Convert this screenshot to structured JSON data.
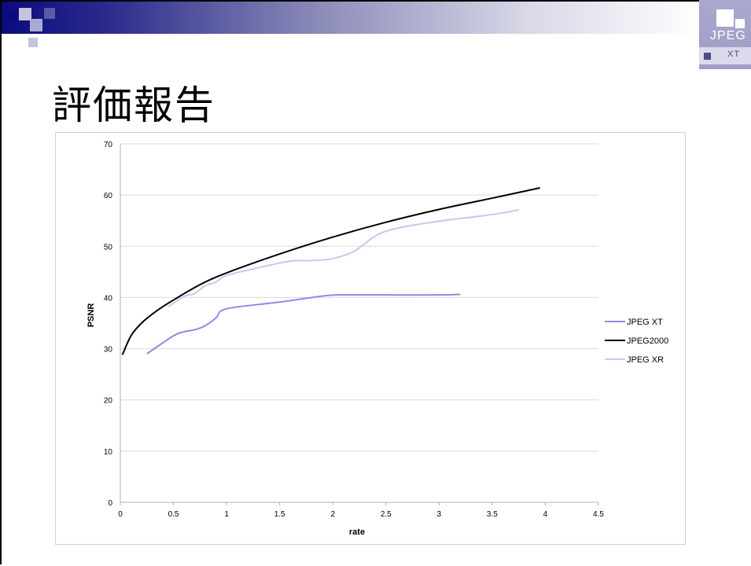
{
  "slide": {
    "title": "評価報告",
    "logo": {
      "main_text": "JPEG",
      "sub_text": "XT"
    },
    "colors": {
      "header_dark": "#0a0a80",
      "header_light": "#ffffff",
      "logo_bg": "#a9a9cf"
    }
  },
  "chart_data": {
    "type": "line",
    "title": "",
    "xlabel": "rate",
    "ylabel": "PSNR",
    "xlim": [
      0,
      4.5
    ],
    "ylim": [
      0,
      70
    ],
    "x_ticks": [
      "0",
      "0.5",
      "1",
      "1.5",
      "2",
      "2.5",
      "3",
      "3.5",
      "4",
      "4.5"
    ],
    "y_ticks": [
      "0",
      "10",
      "20",
      "30",
      "40",
      "50",
      "60",
      "70"
    ],
    "grid": "horizontal",
    "legend_position": "right",
    "series": [
      {
        "name": "JPEG XT",
        "color": "#8b8be8",
        "points": [
          [
            0.25,
            29.0
          ],
          [
            0.5,
            32.5
          ],
          [
            0.6,
            33.3
          ],
          [
            0.7,
            33.7
          ],
          [
            0.8,
            34.5
          ],
          [
            0.9,
            36.0
          ],
          [
            1.0,
            37.8
          ],
          [
            1.5,
            39.1
          ],
          [
            1.95,
            40.4
          ],
          [
            2.2,
            40.5
          ],
          [
            2.5,
            40.5
          ],
          [
            3.0,
            40.5
          ],
          [
            3.2,
            40.6
          ]
        ]
      },
      {
        "name": "JPEG2000",
        "color": "#000000",
        "points": [
          [
            0.02,
            28.8
          ],
          [
            0.1,
            32.5
          ],
          [
            0.2,
            35.0
          ],
          [
            0.35,
            37.5
          ],
          [
            0.5,
            39.5
          ],
          [
            0.75,
            42.5
          ],
          [
            1.0,
            44.8
          ],
          [
            1.5,
            48.5
          ],
          [
            2.0,
            51.8
          ],
          [
            2.5,
            54.7
          ],
          [
            3.0,
            57.2
          ],
          [
            3.5,
            59.4
          ],
          [
            3.95,
            61.4
          ]
        ]
      },
      {
        "name": "JPEG XR",
        "color": "#c8c8ee",
        "points": [
          [
            0.45,
            38.2
          ],
          [
            0.6,
            40.2
          ],
          [
            0.7,
            40.8
          ],
          [
            0.8,
            42.3
          ],
          [
            0.9,
            43.0
          ],
          [
            1.0,
            44.3
          ],
          [
            1.3,
            45.8
          ],
          [
            1.6,
            47.1
          ],
          [
            1.8,
            47.2
          ],
          [
            2.0,
            47.6
          ],
          [
            2.2,
            49.0
          ],
          [
            2.4,
            52.0
          ],
          [
            2.6,
            53.5
          ],
          [
            3.0,
            54.9
          ],
          [
            3.5,
            56.2
          ],
          [
            3.75,
            57.1
          ]
        ]
      }
    ]
  }
}
